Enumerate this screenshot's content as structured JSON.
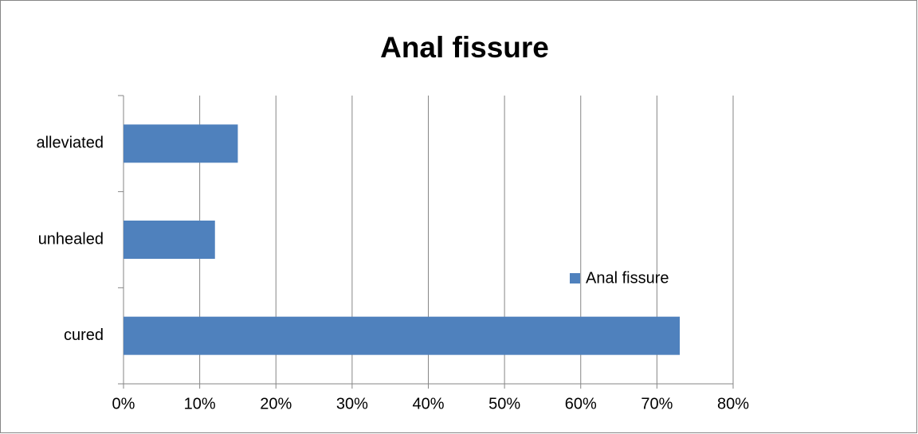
{
  "chart_data": {
    "type": "bar",
    "orientation": "horizontal",
    "title": "Anal fissure",
    "categories": [
      "cured",
      "unhealed",
      "alleviated"
    ],
    "series": [
      {
        "name": "Anal fissure",
        "color": "#4f81bd",
        "values": [
          73,
          12,
          15
        ]
      }
    ],
    "xlim": [
      0,
      80
    ],
    "xticks": [
      {
        "value": 0,
        "label": "0%"
      },
      {
        "value": 10,
        "label": "10%"
      },
      {
        "value": 20,
        "label": "20%"
      },
      {
        "value": 30,
        "label": "30%"
      },
      {
        "value": 40,
        "label": "40%"
      },
      {
        "value": 50,
        "label": "50%"
      },
      {
        "value": 60,
        "label": "60%"
      },
      {
        "value": 70,
        "label": "70%"
      },
      {
        "value": 80,
        "label": "80%"
      }
    ],
    "grid": true,
    "legend": "right"
  }
}
